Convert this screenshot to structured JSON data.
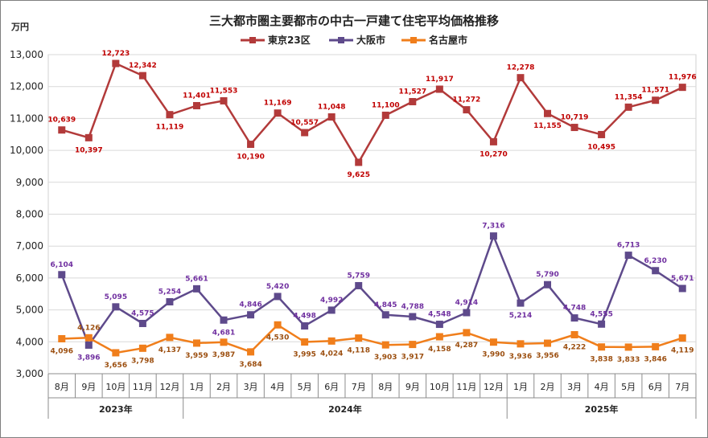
{
  "chart_data": {
    "type": "line",
    "title": "三大都市圏主要都市の中古一戸建て住宅平均価格推移",
    "y_unit": "万円",
    "ylim": [
      3000,
      13000
    ],
    "yticks": [
      "3,000",
      "4,000",
      "5,000",
      "6,000",
      "7,000",
      "8,000",
      "9,000",
      "10,000",
      "11,000",
      "12,000",
      "13,000"
    ],
    "categories": [
      "8月",
      "9月",
      "10月",
      "11月",
      "12月",
      "1月",
      "2月",
      "3月",
      "4月",
      "5月",
      "6月",
      "7月",
      "8月",
      "9月",
      "10月",
      "11月",
      "12月",
      "1月",
      "2月",
      "3月",
      "4月",
      "5月",
      "6月",
      "7月"
    ],
    "year_groups": [
      {
        "label": "2023年",
        "start": 0,
        "end": 4
      },
      {
        "label": "2024年",
        "start": 5,
        "end": 16
      },
      {
        "label": "2025年",
        "start": 17,
        "end": 23
      }
    ],
    "legend_position": "top-center",
    "series": [
      {
        "name": "東京23区",
        "color": "#b23a3a",
        "label_color": "#c00000",
        "values": [
          10639,
          10397,
          12723,
          12342,
          11119,
          11401,
          11553,
          10190,
          11169,
          10557,
          11048,
          9625,
          11100,
          11527,
          11917,
          11272,
          10270,
          12278,
          11155,
          10719,
          10495,
          11354,
          11571,
          11976
        ],
        "labels": [
          "10,639",
          "10,397",
          "12,723",
          "12,342",
          "11,119",
          "11,401",
          "11,553",
          "10,190",
          "11,169",
          "10,557",
          "11,048",
          "9,625",
          "11,100",
          "11,527",
          "11,917",
          "11,272",
          "10,270",
          "12,278",
          "11,155",
          "10,719",
          "10,495",
          "11,354",
          "11,571",
          "11,976"
        ]
      },
      {
        "name": "大阪市",
        "color": "#5e4a8b",
        "label_color": "#7030a0",
        "values": [
          6104,
          3896,
          5095,
          4575,
          5254,
          5661,
          4681,
          4846,
          5420,
          4498,
          4992,
          5759,
          4845,
          4788,
          4548,
          4914,
          7316,
          5214,
          5790,
          4748,
          4555,
          6713,
          6230,
          5671
        ],
        "labels": [
          "6,104",
          "3,896",
          "5,095",
          "4,575",
          "5,254",
          "5,661",
          "4,681",
          "4,846",
          "5,420",
          "4,498",
          "4,992",
          "5,759",
          "4,845",
          "4,788",
          "4,548",
          "4,914",
          "7,316",
          "5,214",
          "5,790",
          "4,748",
          "4,555",
          "6,713",
          "6,230",
          "5,671"
        ]
      },
      {
        "name": "名古屋市",
        "color": "#f07e1b",
        "label_color": "#9c4f10",
        "values": [
          4096,
          4126,
          3656,
          3798,
          4137,
          3959,
          3987,
          3684,
          4530,
          3995,
          4024,
          4118,
          3903,
          3917,
          4158,
          4287,
          3990,
          3936,
          3956,
          4222,
          3838,
          3833,
          3846,
          4119
        ],
        "labels": [
          "4,096",
          "4,126",
          "3,656",
          "3,798",
          "4,137",
          "3,959",
          "3,987",
          "3,684",
          "4,530",
          "3,995",
          "4,024",
          "4,118",
          "3,903",
          "3,917",
          "4,158",
          "4,287",
          "3,990",
          "3,936",
          "3,956",
          "4,222",
          "3,838",
          "3,833",
          "3,846",
          "4,119"
        ]
      }
    ]
  }
}
